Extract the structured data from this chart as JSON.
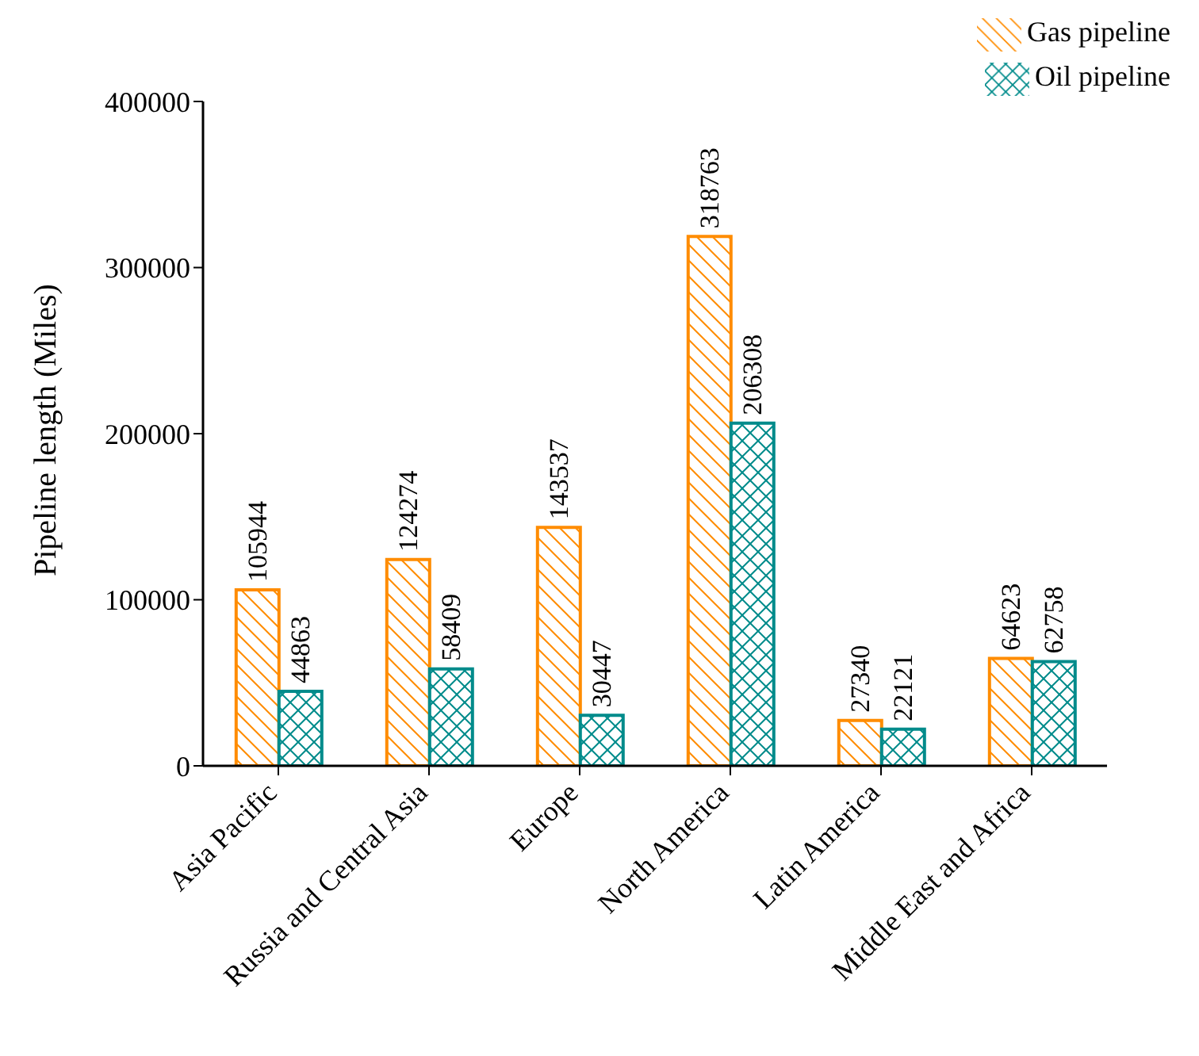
{
  "chart_data": {
    "type": "bar",
    "ylabel": "Pipeline length (Miles)",
    "categories": [
      "Asia Pacific",
      "Russia and Central Asia",
      "Europe",
      "North America",
      "Latin America",
      "Middle East and Africa"
    ],
    "series": [
      {
        "name": "Gas pipeline",
        "color": "#ff8c00",
        "values": [
          105944,
          124274,
          143537,
          318763,
          27340,
          64623
        ]
      },
      {
        "name": "Oil pipeline",
        "color": "#008b8b",
        "values": [
          44863,
          58409,
          30447,
          206308,
          22121,
          62758
        ]
      }
    ],
    "ylim": [
      0,
      400000
    ],
    "yticks": [
      0,
      100000,
      200000,
      300000,
      400000
    ],
    "legend": "top right",
    "data_labels": true
  }
}
